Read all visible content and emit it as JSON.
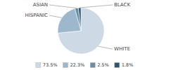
{
  "chart_data": {
    "type": "pie",
    "categories": [
      "WHITE",
      "HISPANIC",
      "ASIAN",
      "BLACK"
    ],
    "values": [
      73.5,
      22.3,
      2.5,
      1.8
    ],
    "value_labels": [
      "73.5%",
      "22.3%",
      "2.5%",
      "1.8%"
    ],
    "colors": [
      "#cdd9e5",
      "#9db8cc",
      "#6a8fa8",
      "#2e5470"
    ],
    "legend": "bottom"
  }
}
